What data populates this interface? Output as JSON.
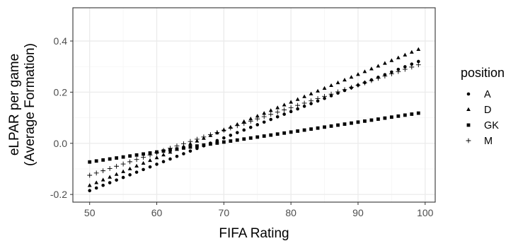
{
  "chart_data": {
    "type": "scatter",
    "xlabel": "FIFA Rating",
    "ylabel_lines": [
      "eLPAR per game",
      "(Average Formation)"
    ],
    "xlim": [
      47.5,
      101.5
    ],
    "ylim": [
      -0.23,
      0.53
    ],
    "x_ticks": [
      50,
      60,
      70,
      80,
      90,
      100
    ],
    "x_tick_labels": [
      "50",
      "60",
      "70",
      "80",
      "90",
      "100"
    ],
    "y_ticks": [
      -0.2,
      0.0,
      0.2,
      0.4
    ],
    "y_tick_labels": [
      "-0.2",
      "0.0",
      "0.2",
      "0.4"
    ],
    "grid": true,
    "legend": {
      "title": "position",
      "placement": "right"
    },
    "x_range": {
      "start": 50,
      "end": 99,
      "step": 1
    },
    "series": [
      {
        "name": "A",
        "marker": "circle",
        "y_at_start": -0.185,
        "y_at_end": 0.32
      },
      {
        "name": "D",
        "marker": "triangle",
        "y_at_start": -0.165,
        "y_at_end": 0.367
      },
      {
        "name": "GK",
        "marker": "square",
        "y_at_start": -0.073,
        "y_at_end": 0.118
      },
      {
        "name": "M",
        "marker": "plus",
        "y_at_start": -0.125,
        "y_at_end": 0.307
      }
    ],
    "colors": {
      "panel_border": "#333333",
      "grid_major": "#ebebeb",
      "grid_minor": "#f5f5f5",
      "points": "#000000",
      "ticks": "#4d4d4d"
    }
  }
}
